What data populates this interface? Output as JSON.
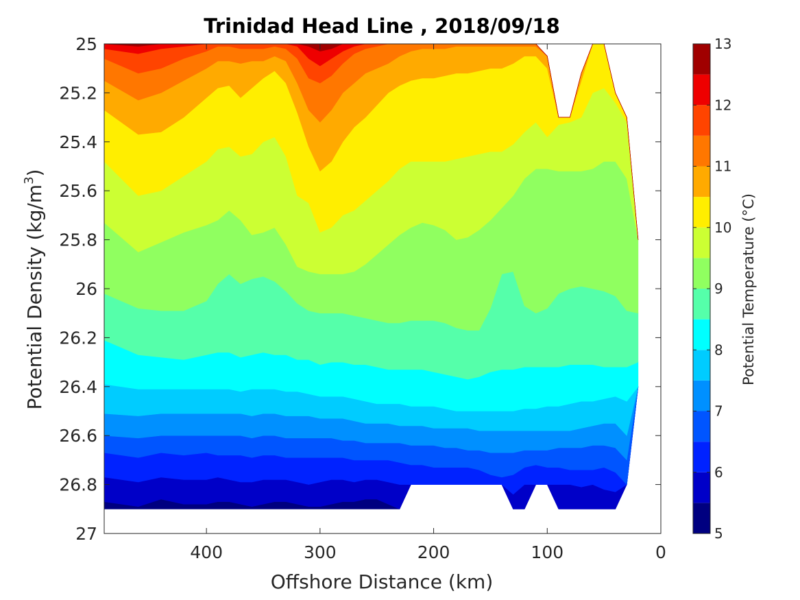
{
  "chart_data": {
    "type": "heatmap",
    "subtype": "filled-contour",
    "title": "Trinidad Head Line , 2018/09/18",
    "xlabel": "Offshore Distance (km)",
    "ylabel": "Potential Density (kg/m",
    "ylabel_sup": "3",
    "ylabel_tail": ")",
    "x_axis": {
      "range": [
        490,
        0
      ],
      "reversed": true,
      "ticks": [
        400,
        300,
        200,
        100,
        0
      ],
      "tick_labels": [
        "400",
        "300",
        "200",
        "100",
        "0"
      ]
    },
    "y_axis": {
      "range": [
        25,
        27
      ],
      "reversed": true,
      "ticks": [
        25,
        25.2,
        25.4,
        25.6,
        25.8,
        26,
        26.2,
        26.4,
        26.6,
        26.8,
        27
      ],
      "tick_labels": [
        "25",
        "25.2",
        "25.4",
        "25.6",
        "25.8",
        "26",
        "26.2",
        "26.4",
        "26.6",
        "26.8",
        "27"
      ]
    },
    "colorbar": {
      "label": "Potential Temperature (°C)",
      "range": [
        5,
        13
      ],
      "ticks": [
        5,
        6,
        7,
        8,
        9,
        10,
        11,
        12,
        13
      ],
      "tick_labels": [
        "5",
        "6",
        "7",
        "8",
        "9",
        "10",
        "11",
        "12",
        "13"
      ],
      "level_step": 0.5,
      "colors": [
        "#000080",
        "#0000c8",
        "#0022ff",
        "#0055ff",
        "#0090ff",
        "#00ccff",
        "#00ffff",
        "#55ffaa",
        "#90ff60",
        "#ccff33",
        "#ffee00",
        "#ffaa00",
        "#ff7700",
        "#ff4400",
        "#ee0000",
        "#a00000"
      ]
    },
    "data_extent": {
      "x_distances_km": [
        490,
        460,
        440,
        420,
        400,
        390,
        380,
        370,
        360,
        350,
        340,
        330,
        320,
        310,
        300,
        290,
        280,
        270,
        260,
        250,
        240,
        230,
        220,
        210,
        200,
        190,
        180,
        170,
        160,
        150,
        140,
        130,
        120,
        110,
        100,
        90,
        80,
        70,
        60,
        50,
        40,
        30,
        20
      ],
      "surface_density": [
        25,
        25,
        25,
        25,
        25,
        25,
        25,
        25,
        25,
        25,
        25,
        25,
        25,
        25,
        25,
        25,
        25,
        25,
        25,
        25,
        25,
        25,
        25,
        25,
        25,
        25,
        25,
        25,
        25,
        25,
        25,
        25,
        25,
        25,
        25.05,
        25.3,
        25.3,
        25.12,
        25,
        25,
        25.2,
        25.3,
        25.8
      ],
      "bottom_density": [
        26.9,
        26.9,
        26.9,
        26.9,
        26.9,
        26.9,
        26.9,
        26.9,
        26.9,
        26.9,
        26.9,
        26.9,
        26.9,
        26.9,
        26.9,
        26.9,
        26.9,
        26.9,
        26.9,
        26.9,
        26.9,
        26.9,
        26.8,
        26.8,
        26.8,
        26.8,
        26.8,
        26.8,
        26.8,
        26.8,
        26.8,
        26.9,
        26.9,
        26.8,
        26.8,
        26.9,
        26.9,
        26.9,
        26.9,
        26.9,
        26.9,
        26.8,
        26.4
      ]
    },
    "isotherm_density_by_temperature": {
      "x_km": [
        490,
        460,
        440,
        420,
        400,
        390,
        380,
        370,
        360,
        350,
        340,
        330,
        320,
        310,
        300,
        290,
        280,
        270,
        260,
        250,
        240,
        230,
        220,
        210,
        200,
        190,
        180,
        170,
        160,
        150,
        140,
        130,
        120,
        110,
        100,
        90,
        80,
        70,
        60,
        50,
        40,
        30,
        20
      ],
      "levels": {
        "5.5": [
          26.87,
          26.89,
          26.86,
          26.88,
          26.88,
          26.87,
          26.87,
          26.88,
          26.89,
          26.88,
          26.87,
          26.87,
          26.88,
          26.89,
          26.89,
          26.88,
          26.87,
          26.87,
          26.86,
          26.86,
          26.88,
          26.9,
          26.9,
          26.9,
          26.9,
          26.9,
          26.9,
          26.9,
          26.9,
          26.9,
          26.9,
          26.9,
          26.9,
          26.9,
          26.9,
          26.9,
          26.9,
          26.9,
          26.9,
          26.9,
          26.9,
          26.9,
          26.9
        ],
        "6": [
          26.77,
          26.79,
          26.77,
          26.78,
          26.78,
          26.77,
          26.78,
          26.79,
          26.79,
          26.78,
          26.78,
          26.78,
          26.79,
          26.8,
          26.79,
          26.78,
          26.78,
          26.79,
          26.78,
          26.78,
          26.79,
          26.8,
          26.8,
          26.8,
          26.8,
          26.8,
          26.8,
          26.8,
          26.8,
          26.8,
          26.81,
          26.84,
          26.8,
          26.8,
          26.8,
          26.8,
          26.8,
          26.81,
          26.8,
          26.82,
          26.83,
          26.86,
          26.9
        ],
        "6.5": [
          26.67,
          26.69,
          26.67,
          26.68,
          26.67,
          26.68,
          26.68,
          26.68,
          26.69,
          26.68,
          26.68,
          26.69,
          26.69,
          26.69,
          26.69,
          26.69,
          26.69,
          26.7,
          26.7,
          26.7,
          26.7,
          26.71,
          26.72,
          26.72,
          26.73,
          26.73,
          26.73,
          26.73,
          26.74,
          26.76,
          26.77,
          26.76,
          26.73,
          26.72,
          26.73,
          26.73,
          26.74,
          26.74,
          26.74,
          26.73,
          26.75,
          26.8,
          26.9
        ],
        "7": [
          26.6,
          26.61,
          26.6,
          26.6,
          26.6,
          26.6,
          26.6,
          26.6,
          26.61,
          26.6,
          26.6,
          26.61,
          26.61,
          26.61,
          26.61,
          26.61,
          26.62,
          26.62,
          26.63,
          26.63,
          26.63,
          26.63,
          26.64,
          26.64,
          26.64,
          26.65,
          26.65,
          26.66,
          26.66,
          26.67,
          26.67,
          26.67,
          26.66,
          26.66,
          26.66,
          26.65,
          26.65,
          26.65,
          26.64,
          26.64,
          26.65,
          26.7,
          26.9
        ],
        "7.5": [
          26.51,
          26.52,
          26.51,
          26.51,
          26.51,
          26.51,
          26.51,
          26.51,
          26.52,
          26.51,
          26.51,
          26.52,
          26.52,
          26.52,
          26.53,
          26.53,
          26.53,
          26.54,
          26.55,
          26.55,
          26.55,
          26.56,
          26.56,
          26.56,
          26.57,
          26.57,
          26.57,
          26.57,
          26.58,
          26.58,
          26.58,
          26.58,
          26.58,
          26.58,
          26.58,
          26.58,
          26.58,
          26.57,
          26.56,
          26.55,
          26.55,
          26.6,
          26.9
        ],
        "8": [
          26.39,
          26.41,
          26.41,
          26.41,
          26.41,
          26.41,
          26.41,
          26.42,
          26.41,
          26.41,
          26.41,
          26.42,
          26.42,
          26.43,
          26.44,
          26.44,
          26.44,
          26.45,
          26.46,
          26.47,
          26.47,
          26.47,
          26.48,
          26.48,
          26.48,
          26.49,
          26.5,
          26.5,
          26.5,
          26.5,
          26.5,
          26.5,
          26.49,
          26.49,
          26.48,
          26.48,
          26.47,
          26.46,
          26.46,
          26.45,
          26.44,
          26.46,
          26.45
        ],
        "8.5": [
          26.21,
          26.27,
          26.28,
          26.29,
          26.27,
          26.26,
          26.26,
          26.28,
          26.27,
          26.26,
          26.27,
          26.27,
          26.29,
          26.29,
          26.31,
          26.3,
          26.3,
          26.31,
          26.31,
          26.32,
          26.33,
          26.33,
          26.33,
          26.33,
          26.34,
          26.35,
          26.36,
          26.37,
          26.36,
          26.34,
          26.33,
          26.33,
          26.32,
          26.32,
          26.32,
          26.32,
          26.31,
          26.31,
          26.31,
          26.32,
          26.32,
          26.32,
          26.3
        ],
        "9": [
          26.02,
          26.08,
          26.09,
          26.09,
          26.05,
          25.98,
          25.94,
          25.98,
          25.96,
          25.95,
          25.97,
          26.01,
          26.06,
          26.09,
          26.1,
          26.1,
          26.1,
          26.11,
          26.12,
          26.13,
          26.14,
          26.14,
          26.13,
          26.13,
          26.13,
          26.14,
          26.16,
          26.17,
          26.17,
          26.08,
          25.94,
          25.93,
          26.07,
          26.1,
          26.08,
          26.02,
          26.0,
          25.99,
          26.0,
          26.01,
          26.03,
          26.09,
          26.1
        ],
        "9.5": [
          25.73,
          25.85,
          25.81,
          25.77,
          25.74,
          25.72,
          25.68,
          25.72,
          25.78,
          25.77,
          25.75,
          25.82,
          25.91,
          25.93,
          25.94,
          25.94,
          25.94,
          25.93,
          25.9,
          25.86,
          25.82,
          25.78,
          25.75,
          25.73,
          25.74,
          25.76,
          25.8,
          25.79,
          25.76,
          25.72,
          25.67,
          25.62,
          25.55,
          25.51,
          25.51,
          25.52,
          25.52,
          25.52,
          25.51,
          25.48,
          25.48,
          25.55,
          25.8
        ],
        "10": [
          25.48,
          25.62,
          25.6,
          25.54,
          25.48,
          25.43,
          25.42,
          25.46,
          25.45,
          25.4,
          25.38,
          25.46,
          25.62,
          25.65,
          25.77,
          25.75,
          25.7,
          25.68,
          25.64,
          25.6,
          25.56,
          25.51,
          25.48,
          25.48,
          25.48,
          25.48,
          25.47,
          25.46,
          25.45,
          25.44,
          25.44,
          25.41,
          25.36,
          25.32,
          25.38,
          25.33,
          25.32,
          25.3,
          25.2,
          25.18,
          25.24,
          25.32,
          25.8
        ],
        "10.5": [
          25.27,
          25.37,
          25.36,
          25.3,
          25.22,
          25.18,
          25.17,
          25.22,
          25.18,
          25.14,
          25.11,
          25.16,
          25.28,
          25.42,
          25.52,
          25.48,
          25.4,
          25.34,
          25.3,
          25.25,
          25.2,
          25.17,
          25.15,
          25.14,
          25.14,
          25.13,
          25.12,
          25.12,
          25.11,
          25.1,
          25.1,
          25.08,
          25.05,
          25.05,
          25.1,
          25.3,
          25.3,
          25.15,
          25.0,
          25.0,
          25.2,
          25.3,
          25.8
        ],
        "11": [
          25.15,
          25.23,
          25.2,
          25.15,
          25.1,
          25.07,
          25.07,
          25.08,
          25.07,
          25.07,
          25.05,
          25.07,
          25.16,
          25.27,
          25.32,
          25.27,
          25.2,
          25.16,
          25.12,
          25.1,
          25.08,
          25.05,
          25.03,
          25.02,
          25.02,
          25.02,
          25.01,
          25.01,
          25.01,
          25.01,
          25.01,
          25.01,
          25.01,
          25.01,
          25.05,
          25.3,
          25.3,
          25.12,
          25.0,
          25.0,
          25.2,
          25.3,
          25.8
        ],
        "11.5": [
          25.06,
          25.12,
          25.1,
          25.06,
          25.03,
          25.01,
          25.01,
          25.02,
          25.02,
          25.02,
          25.01,
          25.02,
          25.06,
          25.14,
          25.16,
          25.13,
          25.08,
          25.04,
          25.02,
          25.01,
          25.0,
          25.0,
          25.0,
          25.0,
          25.0,
          25.0,
          25.0,
          25.0,
          25.0,
          25.0,
          25.0,
          25.0,
          25.0,
          25.0,
          25.05,
          25.3,
          25.3,
          25.12,
          25.0,
          25.0,
          25.2,
          25.3,
          25.8
        ],
        "12": [
          25.02,
          25.04,
          25.02,
          25.01,
          25.0,
          25.0,
          25.0,
          25.0,
          25.0,
          25.0,
          25.0,
          25.0,
          25.01,
          25.06,
          25.09,
          25.06,
          25.03,
          25.01,
          25.0,
          25.0,
          25.0,
          25.0,
          25.0,
          25.0,
          25.0,
          25.0,
          25.0,
          25.0,
          25.0,
          25.0,
          25.0,
          25.0,
          25.0,
          25.0,
          25.05,
          25.3,
          25.3,
          25.12,
          25.0,
          25.0,
          25.2,
          25.3,
          25.8
        ],
        "12.5": [
          25.0,
          25.01,
          25.0,
          25.0,
          25.0,
          25.0,
          25.0,
          25.0,
          25.0,
          25.0,
          25.0,
          25.0,
          25.0,
          25.01,
          25.03,
          25.02,
          25.0,
          25.0,
          25.0,
          25.0,
          25.0,
          25.0,
          25.0,
          25.0,
          25.0,
          25.0,
          25.0,
          25.0,
          25.0,
          25.0,
          25.0,
          25.0,
          25.0,
          25.0,
          25.05,
          25.3,
          25.3,
          25.12,
          25.0,
          25.0,
          25.2,
          25.3,
          25.8
        ]
      }
    },
    "grid": false
  }
}
